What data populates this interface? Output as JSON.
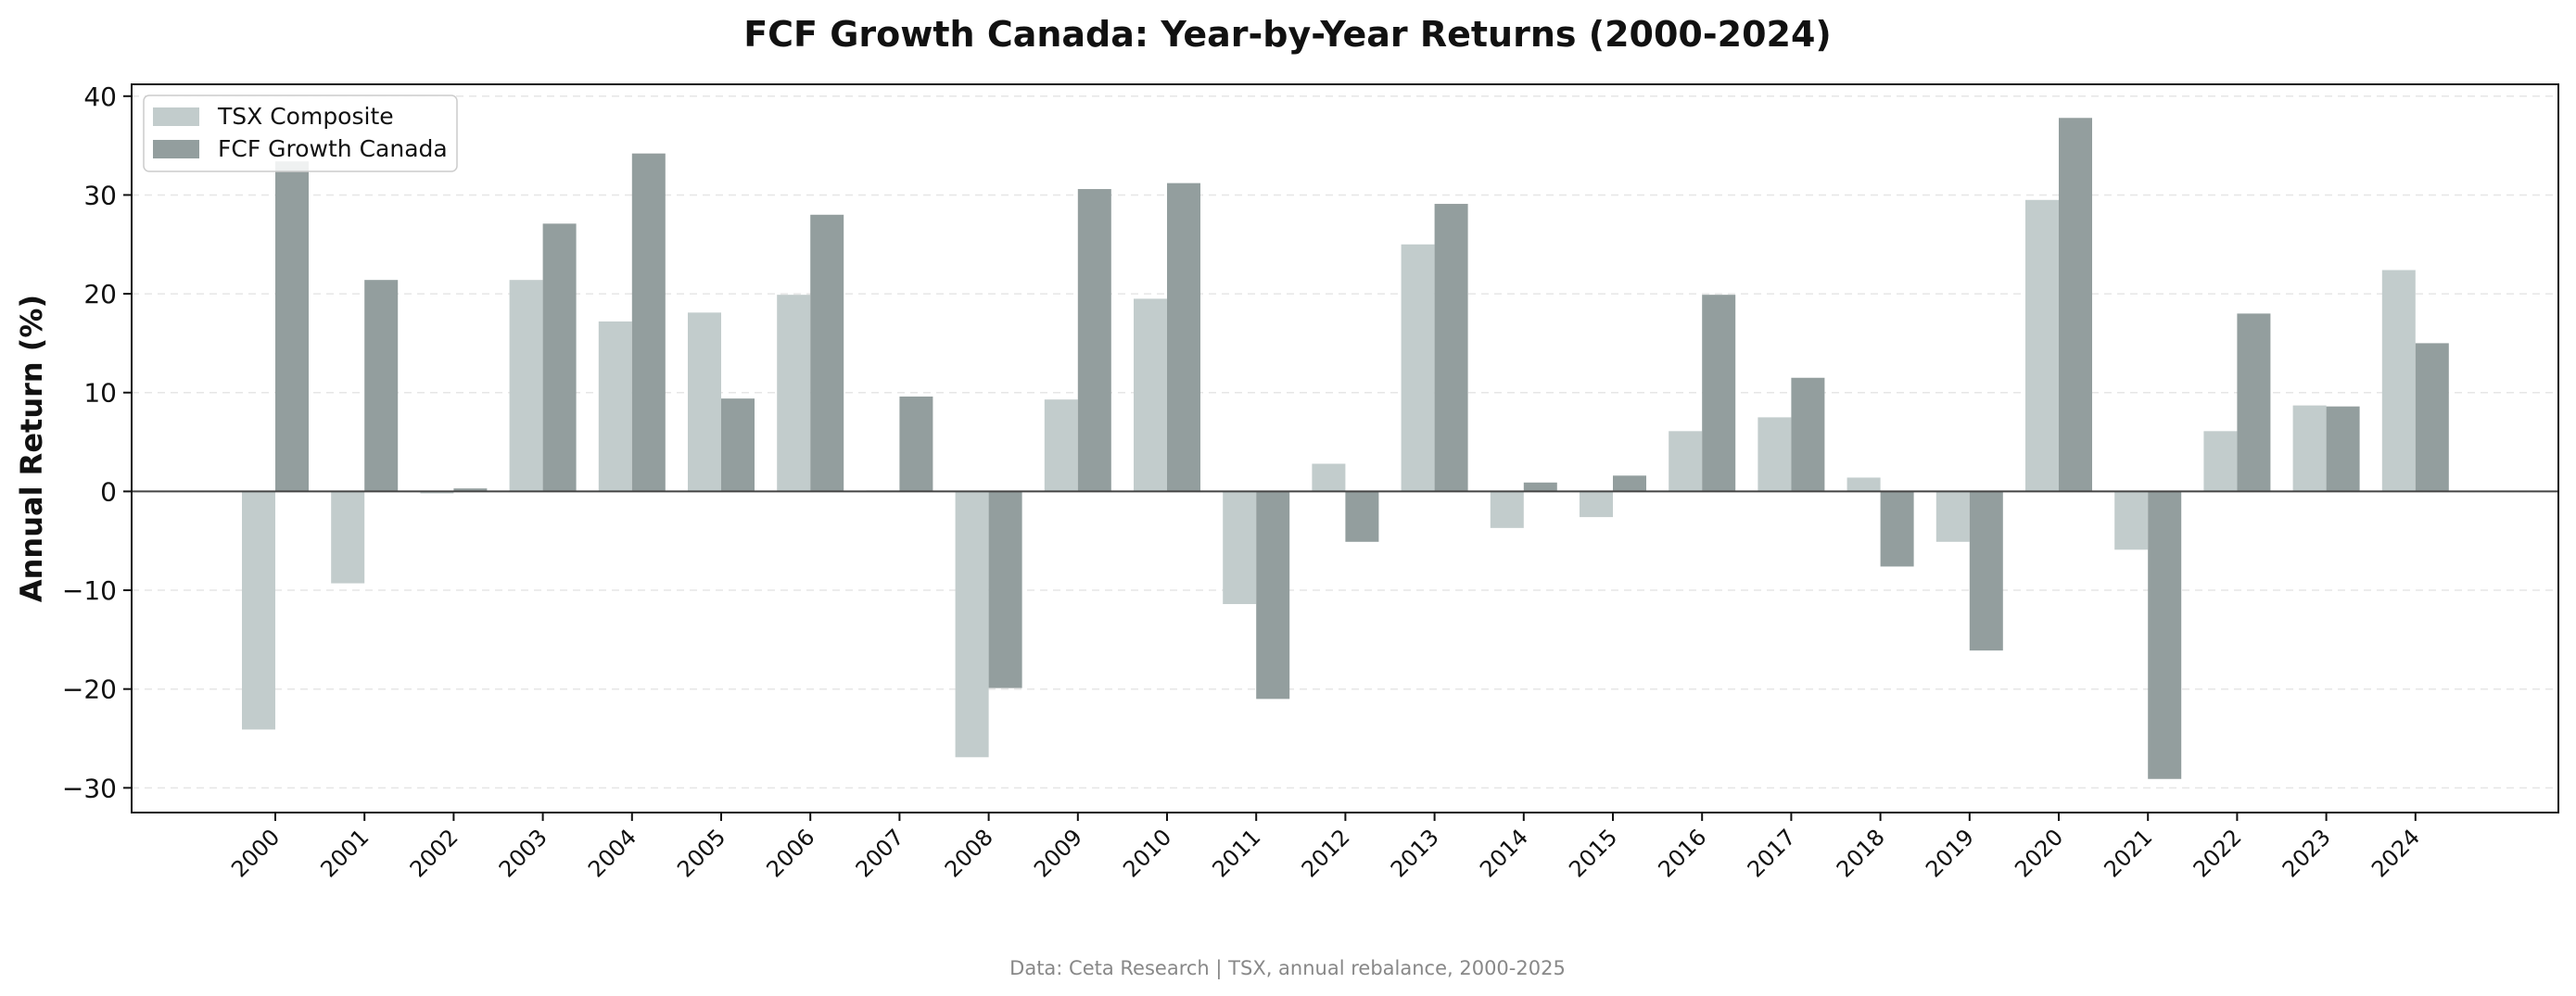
{
  "chart_data": {
    "type": "bar",
    "title": "FCF Growth Canada: Year-by-Year Returns (2000-2024)",
    "xlabel": "",
    "ylabel": "Annual Return (%)",
    "ylim": [
      -32.5,
      41.2
    ],
    "yticks": [
      40,
      30,
      20,
      10,
      0,
      -10,
      -20,
      -30
    ],
    "ytick_labels": [
      "40",
      "30",
      "20",
      "10",
      "0",
      "−10",
      "−20",
      "−30"
    ],
    "grid": "horizontal dashed",
    "legend_position": "upper-left",
    "categories": [
      "2000",
      "2001",
      "2002",
      "2003",
      "2004",
      "2005",
      "2006",
      "2007",
      "2008",
      "2009",
      "2010",
      "2011",
      "2012",
      "2013",
      "2014",
      "2015",
      "2016",
      "2017",
      "2018",
      "2019",
      "2020",
      "2021",
      "2022",
      "2023",
      "2024"
    ],
    "series": [
      {
        "name": "TSX Composite",
        "color": "#c2cccc",
        "values": [
          -24.1,
          -9.3,
          -0.2,
          21.4,
          17.2,
          18.1,
          19.9,
          0.1,
          -26.9,
          9.3,
          19.5,
          -11.4,
          2.8,
          25.0,
          -3.7,
          -2.6,
          6.1,
          7.5,
          1.4,
          -5.1,
          29.5,
          -5.9,
          6.1,
          8.7,
          22.4
        ]
      },
      {
        "name": "FCF Growth Canada",
        "color": "#939e9e",
        "values": [
          33.4,
          21.4,
          0.3,
          27.1,
          34.2,
          9.4,
          28.0,
          9.6,
          -19.9,
          30.6,
          31.2,
          -21.0,
          -5.1,
          29.1,
          0.9,
          1.6,
          19.9,
          11.5,
          -7.6,
          -16.1,
          37.8,
          -29.1,
          18.0,
          8.6,
          15.0
        ]
      }
    ]
  },
  "footer": "Data: Ceta Research | TSX, annual rebalance, 2000-2025"
}
